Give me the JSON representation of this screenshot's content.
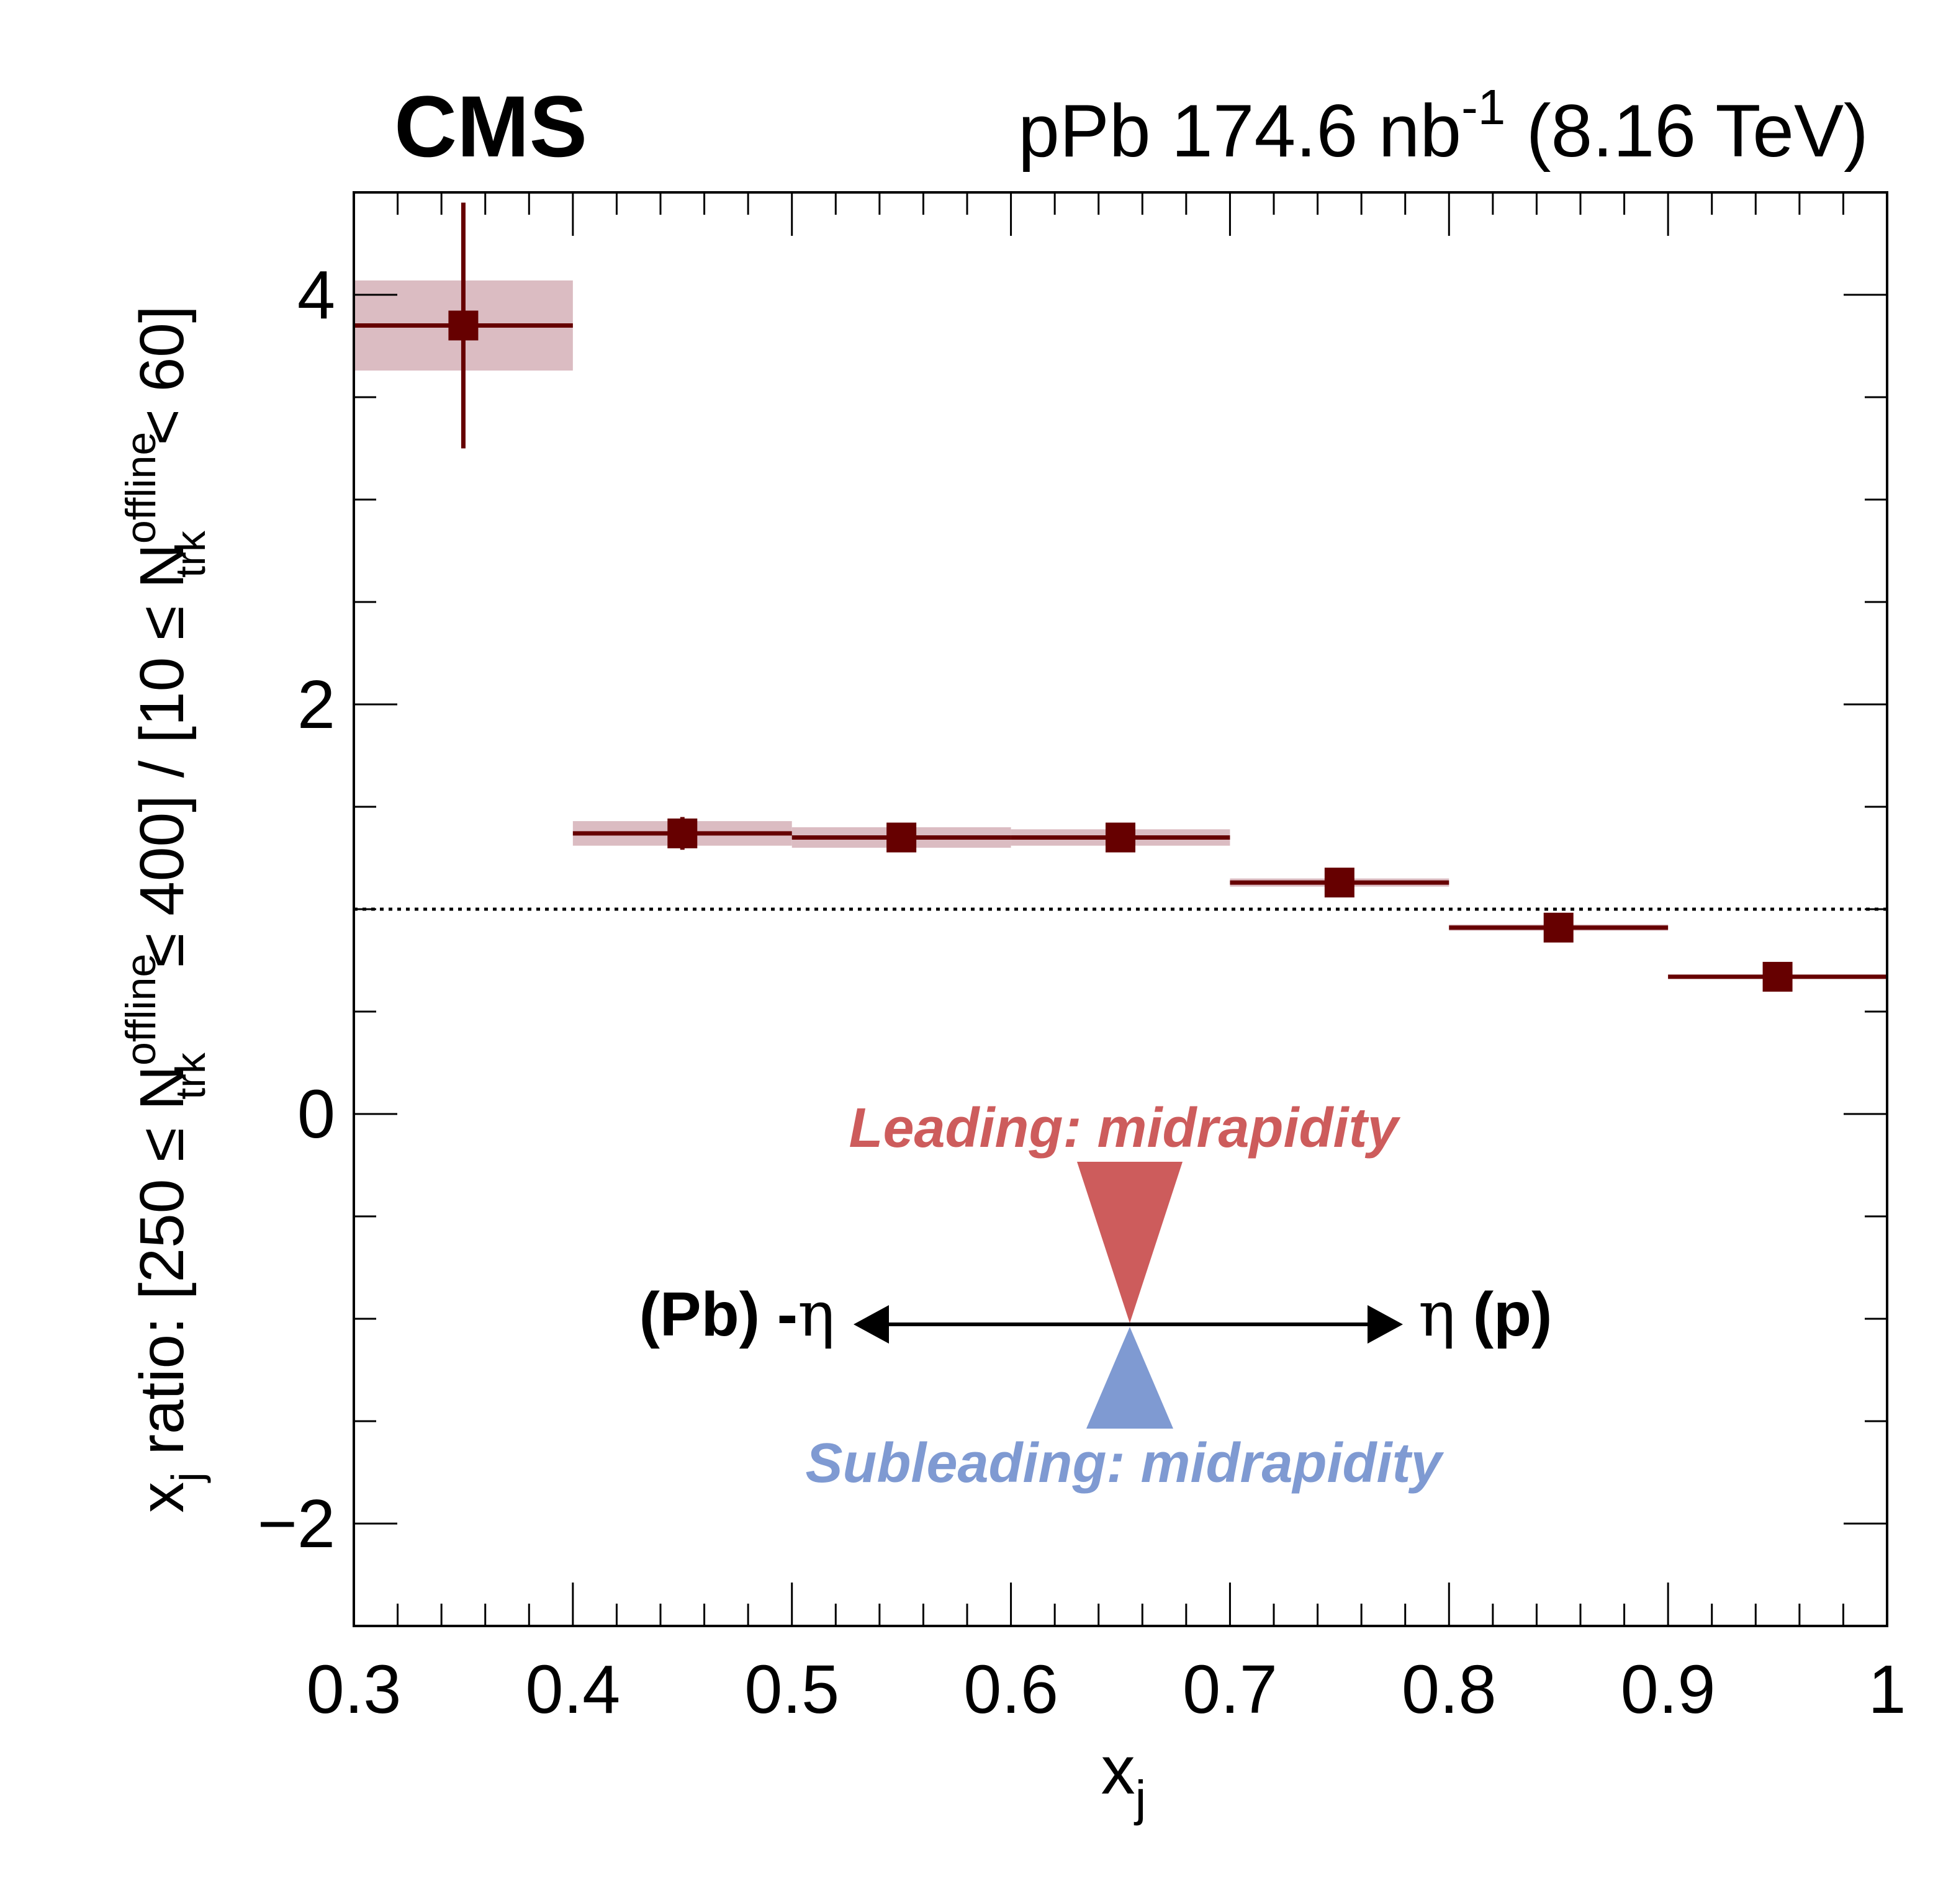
{
  "header": {
    "experiment": "CMS",
    "lumi_prefix": "pPb 174.6 nb",
    "lumi_sup": "-1",
    "lumi_suffix": " (8.16 TeV)"
  },
  "chart_data": {
    "type": "scatter",
    "xlabel": {
      "main": "x",
      "sub": "j"
    },
    "ylabel": {
      "p1": "x",
      "p1_sub": "j",
      "p2": " ratio: [250 ≤ N",
      "p3_sup": "offline",
      "p3_sub": "trk",
      "p4": " ≤ 400] / [10 ≤ N",
      "p5_sup": "offline",
      "p5_sub": "trk",
      "p6": " < 60]"
    },
    "xlim": [
      0.3,
      1.0
    ],
    "ylim": [
      -2.5,
      4.5
    ],
    "xticks": [
      "0.3",
      "0.4",
      "0.5",
      "0.6",
      "0.7",
      "0.8",
      "0.9",
      "1"
    ],
    "xtick_values": [
      0.3,
      0.4,
      0.5,
      0.6,
      0.7,
      0.8,
      0.9,
      1.0
    ],
    "yticks": [
      "−2",
      "0",
      "2",
      "4"
    ],
    "ytick_values": [
      -2,
      0,
      2,
      4
    ],
    "reference_line": 1.0,
    "grid": false,
    "colors": {
      "marker": "#660000",
      "syst_band": "#dbbcc2",
      "leading": "#cd5c5c",
      "subleading": "#7f9ad2"
    },
    "points": [
      {
        "x": 0.35,
        "xlow": 0.3,
        "xhigh": 0.4,
        "y": 3.85,
        "stat": 0.6,
        "syst": 0.22
      },
      {
        "x": 0.45,
        "xlow": 0.4,
        "xhigh": 0.5,
        "y": 1.37,
        "stat": 0.08,
        "syst": 0.06
      },
      {
        "x": 0.55,
        "xlow": 0.5,
        "xhigh": 0.6,
        "y": 1.35,
        "stat": 0.04,
        "syst": 0.05
      },
      {
        "x": 0.65,
        "xlow": 0.6,
        "xhigh": 0.7,
        "y": 1.35,
        "stat": 0.03,
        "syst": 0.04
      },
      {
        "x": 0.75,
        "xlow": 0.7,
        "xhigh": 0.8,
        "y": 1.13,
        "stat": 0.02,
        "syst": 0.02
      },
      {
        "x": 0.85,
        "xlow": 0.8,
        "xhigh": 0.9,
        "y": 0.91,
        "stat": 0.02,
        "syst": 0.015
      },
      {
        "x": 0.95,
        "xlow": 0.9,
        "xhigh": 1.0,
        "y": 0.67,
        "stat": 0.02,
        "syst": 0.01
      }
    ],
    "annotations": {
      "leading": "Leading: midrapidity",
      "subleading": "Subleading: midrapidity",
      "left_label_a": "(Pb) -",
      "left_label_b": "η",
      "right_label_a": "η",
      "right_label_b": " (p)"
    }
  }
}
